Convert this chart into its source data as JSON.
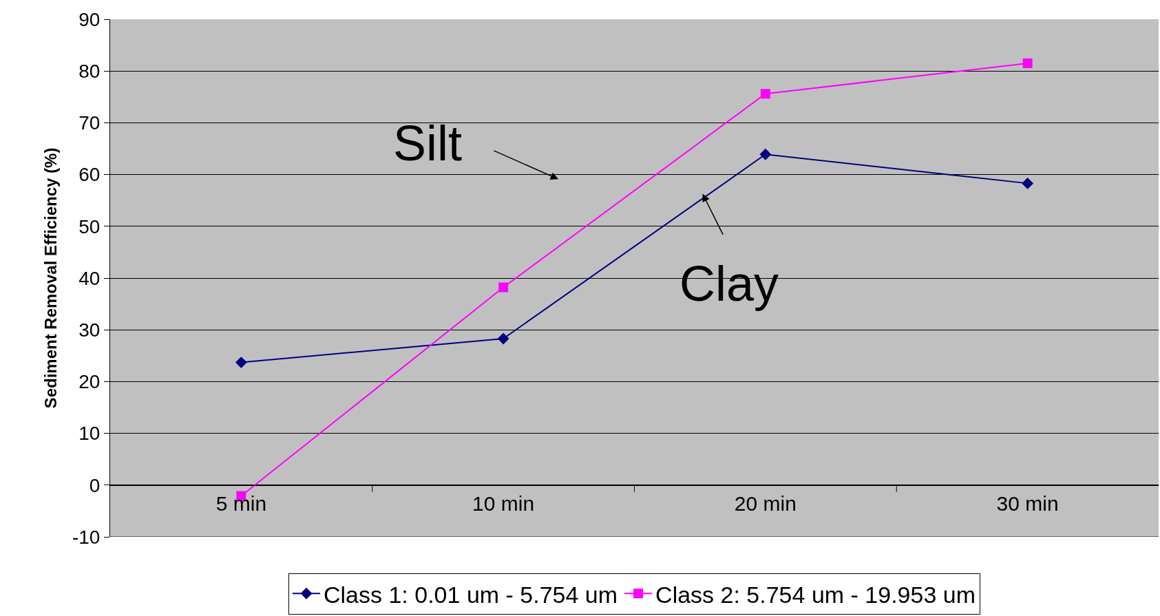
{
  "chart_data": {
    "type": "line",
    "ylabel": "Sediment Removal Efficiency (%)",
    "categories": [
      "5 min",
      "10 min",
      "20 min",
      "30 min"
    ],
    "series": [
      {
        "name": "Class 1: 0.01 um - 5.754 um",
        "color": "#000080",
        "marker": "diamond",
        "values": [
          23.7,
          28.3,
          63.9,
          58.3
        ]
      },
      {
        "name": "Class 2: 5.754 um - 19.953 um",
        "color": "#ff00ff",
        "marker": "square",
        "values": [
          -2.1,
          38.2,
          75.6,
          81.5
        ]
      }
    ],
    "ylim": [
      -10,
      90
    ],
    "yticks": [
      -10,
      0,
      10,
      20,
      30,
      40,
      50,
      60,
      70,
      80,
      90
    ],
    "grid": "y",
    "legend": "bottom",
    "annotations": [
      "Silt",
      "Clay"
    ]
  }
}
